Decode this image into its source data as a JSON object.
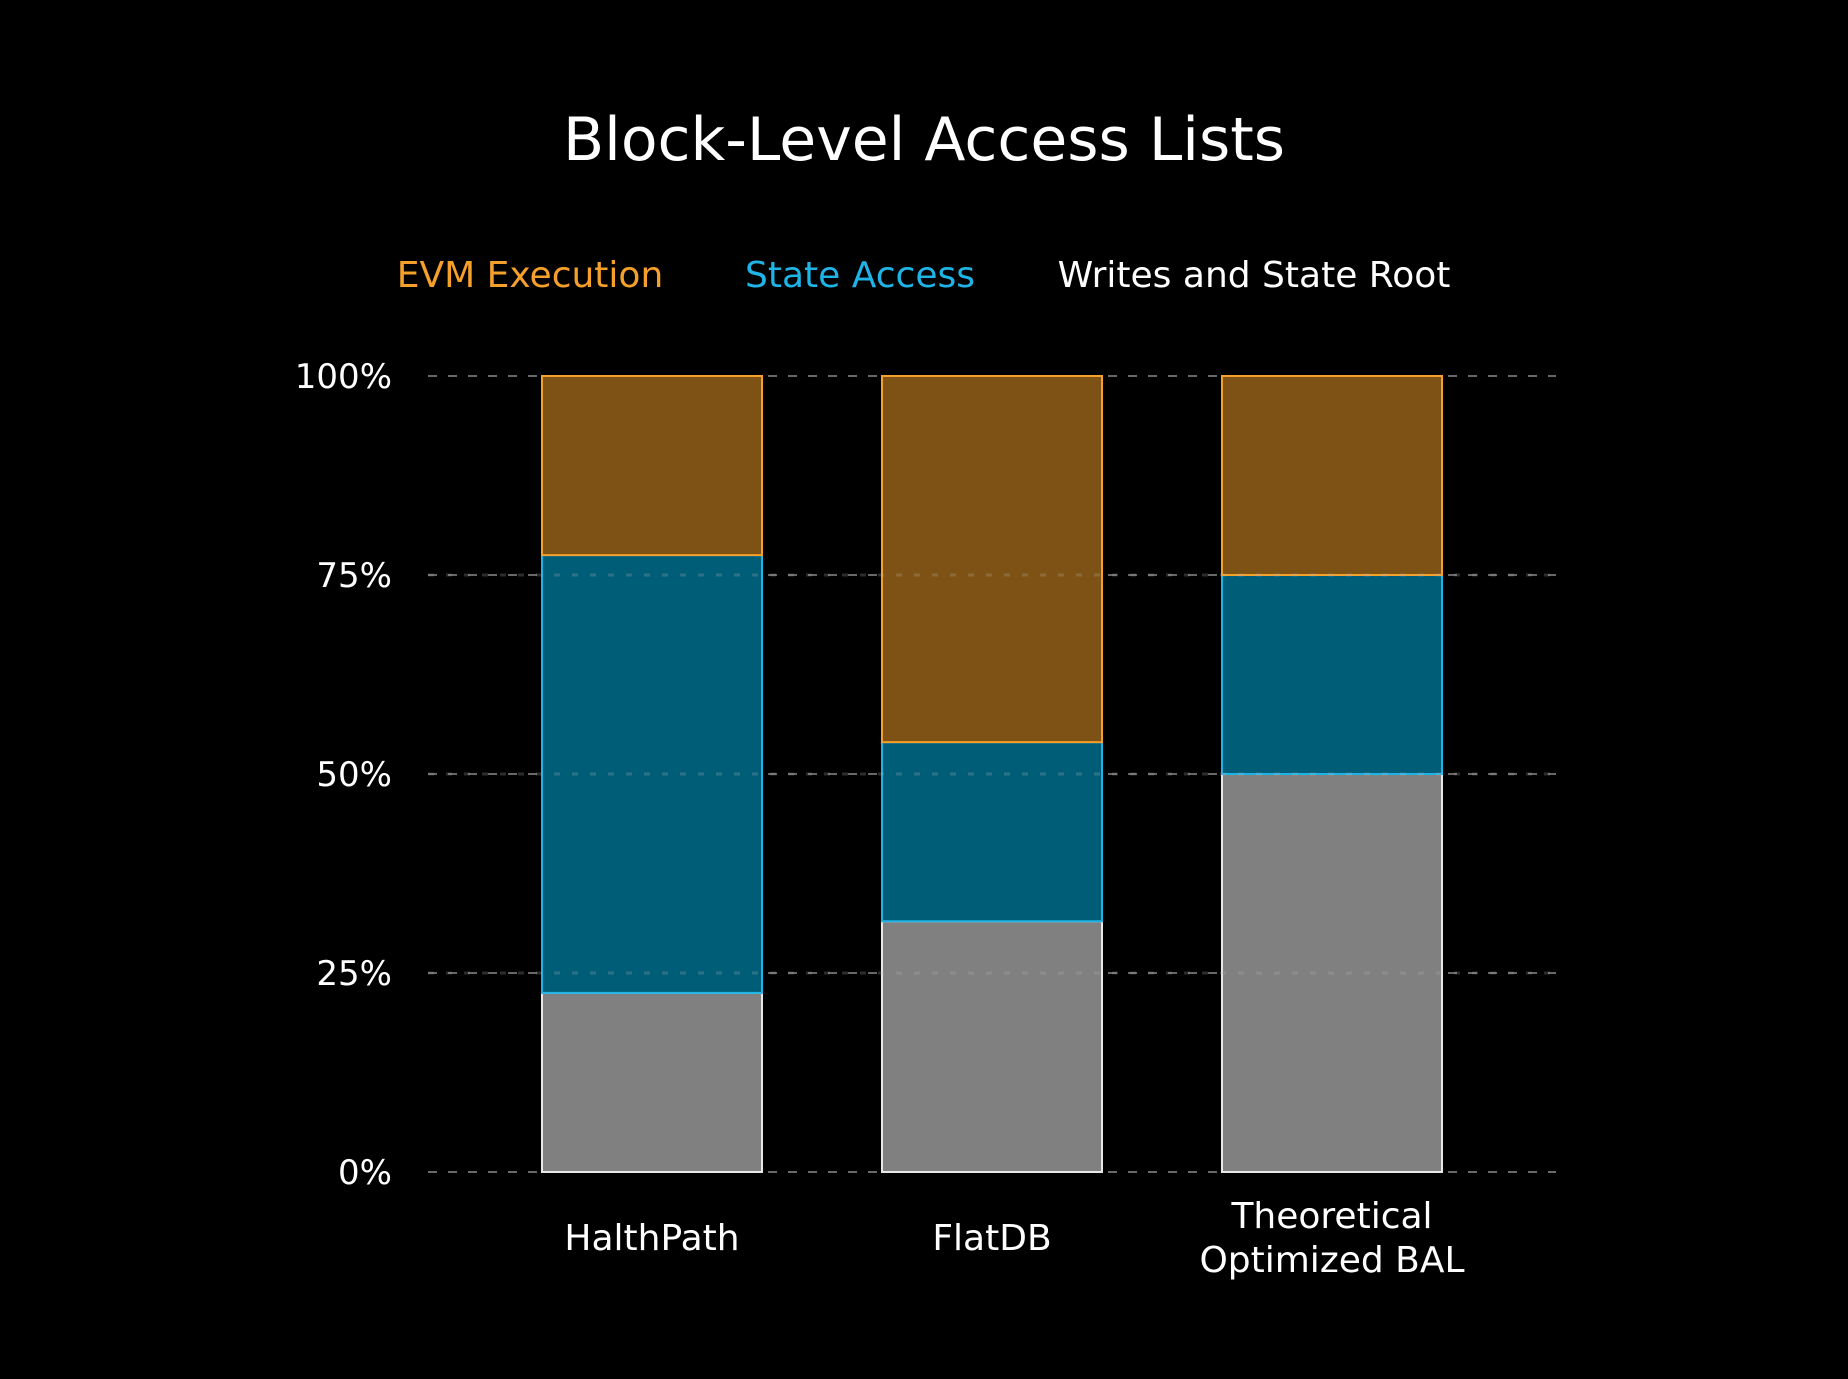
{
  "chart_data": {
    "type": "bar",
    "stacked": true,
    "title": "Block-Level Access Lists",
    "legend_position": "top",
    "categories": [
      "HalthPath",
      "FlatDB",
      "Theoretical\nOptimized BAL"
    ],
    "series": [
      {
        "name": "Writes and State Root",
        "values": [
          22.5,
          31.5,
          50
        ],
        "color": "#808080",
        "border": "#e8e8e8",
        "text_color": "#ffffff"
      },
      {
        "name": "State Access",
        "values": [
          55,
          22.5,
          25
        ],
        "color": "#005d78",
        "border": "#1fb4e6",
        "text_color": "#1fb4e6"
      },
      {
        "name": "EVM Execution",
        "values": [
          22.5,
          46,
          25
        ],
        "color": "#7e5215",
        "border": "#f5a02a",
        "text_color": "#f5a02a"
      }
    ],
    "legend_order": [
      "EVM Execution",
      "State Access",
      "Writes and State Root"
    ],
    "yticks": [
      0,
      25,
      50,
      75,
      100
    ],
    "ytick_labels": [
      "0%",
      "25%",
      "50%",
      "75%",
      "100%"
    ],
    "ylim": [
      0,
      100
    ],
    "grid": true,
    "xlabel": "",
    "ylabel": ""
  }
}
